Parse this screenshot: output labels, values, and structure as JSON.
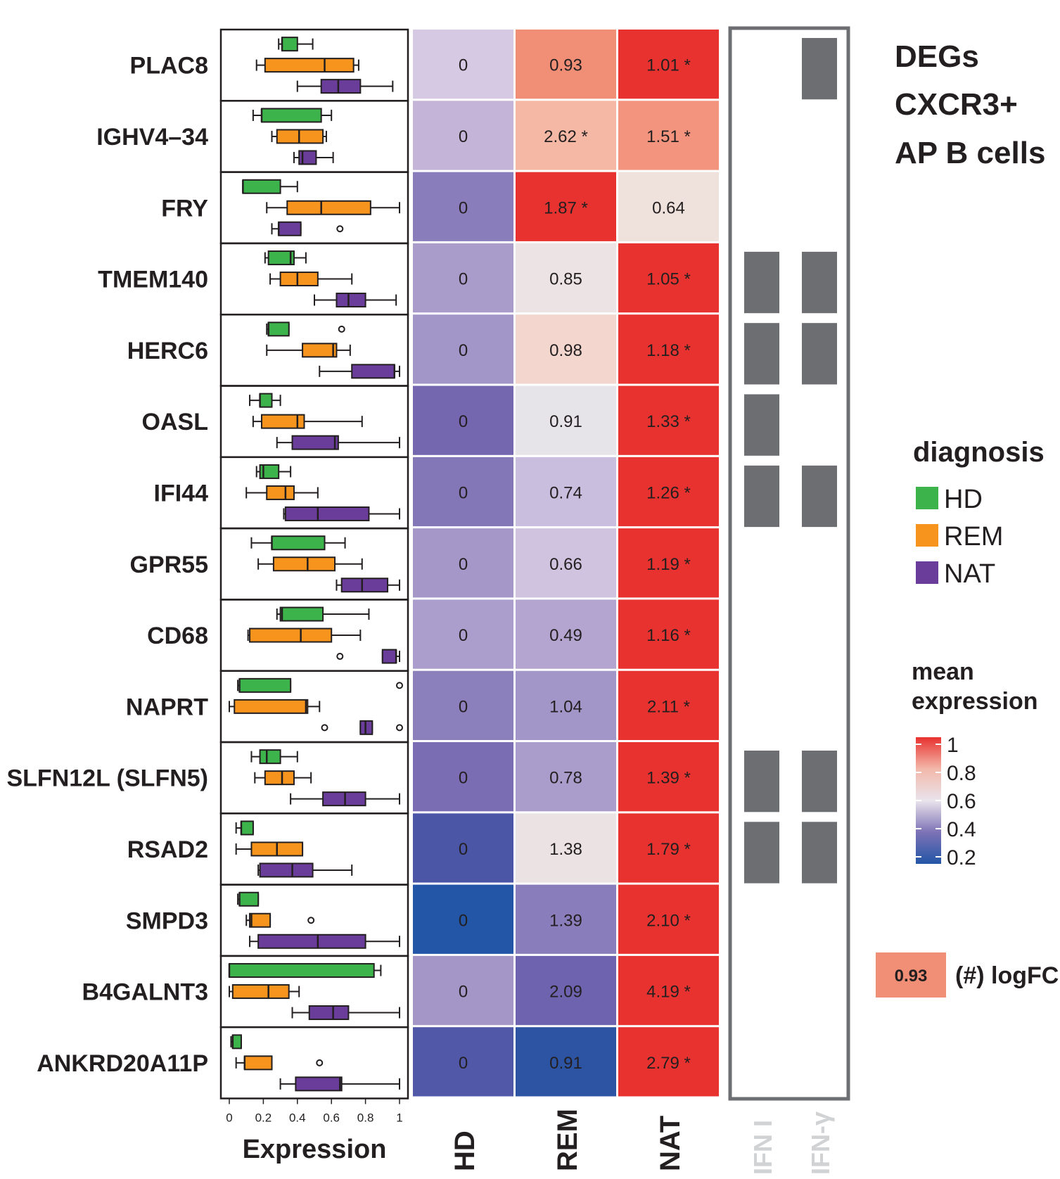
{
  "title_lines": [
    "DEGs",
    "CXCR3+",
    "AP B cells"
  ],
  "chart_data": {
    "type": "heatmap",
    "genes": [
      "PLAC8",
      "IGHV4–34",
      "FRY",
      "TMEM140",
      "HERC6",
      "OASL",
      "IFI44",
      "GPR55",
      "CD68",
      "NAPRT",
      "SLFN12L (SLFN5)",
      "RSAD2",
      "SMPD3",
      "B4GALNT3",
      "ANKRD20A11P"
    ],
    "boxplot": {
      "xlabel": "Expression",
      "ticks": [
        "0",
        "0.2",
        "0.4",
        "0.6",
        "0.8",
        "1"
      ],
      "xlim": [
        0,
        1
      ],
      "groups": [
        "HD",
        "REM",
        "NAT"
      ],
      "colors": {
        "HD": "#3cb44b",
        "REM": "#f7941d",
        "NAT": "#6a3d9a"
      },
      "rows": [
        {
          "HD": {
            "wmin": 0.29,
            "q1": 0.31,
            "med": 0.31,
            "q3": 0.4,
            "wmax": 0.49,
            "out": []
          },
          "REM": {
            "wmin": 0.16,
            "q1": 0.21,
            "med": 0.56,
            "q3": 0.73,
            "wmax": 0.76,
            "out": []
          },
          "NAT": {
            "wmin": 0.4,
            "q1": 0.54,
            "med": 0.64,
            "q3": 0.77,
            "wmax": 0.96,
            "out": []
          }
        },
        {
          "HD": {
            "wmin": 0.14,
            "q1": 0.19,
            "med": 0.19,
            "q3": 0.54,
            "wmax": 0.6,
            "out": []
          },
          "REM": {
            "wmin": 0.25,
            "q1": 0.28,
            "med": 0.41,
            "q3": 0.55,
            "wmax": 0.57,
            "out": []
          },
          "NAT": {
            "wmin": 0.38,
            "q1": 0.41,
            "med": 0.43,
            "q3": 0.51,
            "wmax": 0.61,
            "out": []
          }
        },
        {
          "HD": {
            "wmin": 0.08,
            "q1": 0.08,
            "med": 0.08,
            "q3": 0.3,
            "wmax": 0.4,
            "out": []
          },
          "REM": {
            "wmin": 0.22,
            "q1": 0.34,
            "med": 0.54,
            "q3": 0.83,
            "wmax": 1.0,
            "out": []
          },
          "NAT": {
            "wmin": 0.25,
            "q1": 0.29,
            "med": 0.29,
            "q3": 0.42,
            "wmax": 0.42,
            "out": [
              0.65
            ]
          }
        },
        {
          "HD": {
            "wmin": 0.21,
            "q1": 0.23,
            "med": 0.36,
            "q3": 0.38,
            "wmax": 0.45,
            "out": []
          },
          "REM": {
            "wmin": 0.24,
            "q1": 0.3,
            "med": 0.4,
            "q3": 0.52,
            "wmax": 0.72,
            "out": []
          },
          "NAT": {
            "wmin": 0.5,
            "q1": 0.63,
            "med": 0.7,
            "q3": 0.8,
            "wmax": 0.98,
            "out": []
          }
        },
        {
          "HD": {
            "wmin": 0.22,
            "q1": 0.23,
            "med": 0.23,
            "q3": 0.35,
            "wmax": 0.35,
            "out": [
              0.66
            ]
          },
          "REM": {
            "wmin": 0.22,
            "q1": 0.43,
            "med": 0.61,
            "q3": 0.63,
            "wmax": 0.71,
            "out": []
          },
          "NAT": {
            "wmin": 0.53,
            "q1": 0.72,
            "med": 0.97,
            "q3": 0.97,
            "wmax": 1.0,
            "out": []
          }
        },
        {
          "HD": {
            "wmin": 0.12,
            "q1": 0.18,
            "med": 0.18,
            "q3": 0.25,
            "wmax": 0.3,
            "out": []
          },
          "REM": {
            "wmin": 0.14,
            "q1": 0.19,
            "med": 0.4,
            "q3": 0.44,
            "wmax": 0.78,
            "out": []
          },
          "NAT": {
            "wmin": 0.28,
            "q1": 0.37,
            "med": 0.62,
            "q3": 0.64,
            "wmax": 1.0,
            "out": []
          }
        },
        {
          "HD": {
            "wmin": 0.16,
            "q1": 0.18,
            "med": 0.2,
            "q3": 0.29,
            "wmax": 0.36,
            "out": []
          },
          "REM": {
            "wmin": 0.1,
            "q1": 0.22,
            "med": 0.33,
            "q3": 0.38,
            "wmax": 0.52,
            "out": []
          },
          "NAT": {
            "wmin": 0.32,
            "q1": 0.33,
            "med": 0.52,
            "q3": 0.82,
            "wmax": 1.0,
            "out": []
          }
        },
        {
          "HD": {
            "wmin": 0.13,
            "q1": 0.25,
            "med": 0.25,
            "q3": 0.56,
            "wmax": 0.68,
            "out": []
          },
          "REM": {
            "wmin": 0.17,
            "q1": 0.26,
            "med": 0.46,
            "q3": 0.62,
            "wmax": 0.78,
            "out": []
          },
          "NAT": {
            "wmin": 0.63,
            "q1": 0.66,
            "med": 0.78,
            "q3": 0.93,
            "wmax": 1.0,
            "out": []
          }
        },
        {
          "HD": {
            "wmin": 0.28,
            "q1": 0.3,
            "med": 0.31,
            "q3": 0.55,
            "wmax": 0.82,
            "out": []
          },
          "REM": {
            "wmin": 0.11,
            "q1": 0.12,
            "med": 0.42,
            "q3": 0.6,
            "wmax": 0.77,
            "out": []
          },
          "NAT": {
            "wmin": 0.9,
            "q1": 0.9,
            "med": 0.98,
            "q3": 0.98,
            "wmax": 1.0,
            "out": [
              0.65
            ]
          }
        },
        {
          "HD": {
            "wmin": 0.05,
            "q1": 0.06,
            "med": 0.06,
            "q3": 0.36,
            "wmax": 0.36,
            "out": [
              1.0
            ]
          },
          "REM": {
            "wmin": 0.0,
            "q1": 0.03,
            "med": 0.45,
            "q3": 0.46,
            "wmax": 0.53,
            "out": []
          },
          "NAT": {
            "wmin": 0.77,
            "q1": 0.77,
            "med": 0.8,
            "q3": 0.84,
            "wmax": 0.84,
            "out": [
              0.56,
              1.0
            ]
          }
        },
        {
          "HD": {
            "wmin": 0.13,
            "q1": 0.18,
            "med": 0.22,
            "q3": 0.3,
            "wmax": 0.4,
            "out": []
          },
          "REM": {
            "wmin": 0.15,
            "q1": 0.21,
            "med": 0.31,
            "q3": 0.38,
            "wmax": 0.48,
            "out": []
          },
          "NAT": {
            "wmin": 0.36,
            "q1": 0.55,
            "med": 0.68,
            "q3": 0.8,
            "wmax": 1.0,
            "out": []
          }
        },
        {
          "HD": {
            "wmin": 0.04,
            "q1": 0.07,
            "med": 0.07,
            "q3": 0.14,
            "wmax": 0.14,
            "out": []
          },
          "REM": {
            "wmin": 0.04,
            "q1": 0.13,
            "med": 0.28,
            "q3": 0.43,
            "wmax": 0.43,
            "out": []
          },
          "NAT": {
            "wmin": 0.17,
            "q1": 0.18,
            "med": 0.37,
            "q3": 0.49,
            "wmax": 0.72,
            "out": []
          }
        },
        {
          "HD": {
            "wmin": 0.05,
            "q1": 0.06,
            "med": 0.06,
            "q3": 0.17,
            "wmax": 0.17,
            "out": []
          },
          "REM": {
            "wmin": 0.1,
            "q1": 0.12,
            "med": 0.13,
            "q3": 0.24,
            "wmax": 0.24,
            "out": [
              0.48
            ]
          },
          "NAT": {
            "wmin": 0.12,
            "q1": 0.17,
            "med": 0.52,
            "q3": 0.8,
            "wmax": 1.0,
            "out": []
          }
        },
        {
          "HD": {
            "wmin": 0.0,
            "q1": 0.0,
            "med": 0.0,
            "q3": 0.85,
            "wmax": 0.89,
            "out": []
          },
          "REM": {
            "wmin": 0.0,
            "q1": 0.02,
            "med": 0.23,
            "q3": 0.35,
            "wmax": 0.41,
            "out": []
          },
          "NAT": {
            "wmin": 0.37,
            "q1": 0.47,
            "med": 0.61,
            "q3": 0.7,
            "wmax": 1.0,
            "out": []
          }
        },
        {
          "HD": {
            "wmin": 0.01,
            "q1": 0.02,
            "med": 0.02,
            "q3": 0.07,
            "wmax": 0.07,
            "out": []
          },
          "REM": {
            "wmin": 0.04,
            "q1": 0.09,
            "med": 0.09,
            "q3": 0.25,
            "wmax": 0.25,
            "out": [
              0.53
            ]
          },
          "NAT": {
            "wmin": 0.3,
            "q1": 0.39,
            "med": 0.65,
            "q3": 0.66,
            "wmax": 1.0,
            "out": []
          }
        }
      ]
    },
    "heatmap": {
      "columns": [
        "HD",
        "REM",
        "NAT"
      ],
      "cells": [
        [
          {
            "text": "0",
            "color": "#d5c9e4"
          },
          {
            "text": "0.93",
            "color": "#f08e76"
          },
          {
            "text": "1.01 *",
            "color": "#e8322f"
          }
        ],
        [
          {
            "text": "0",
            "color": "#c4b4d8"
          },
          {
            "text": "2.62 *",
            "color": "#f5b8a5"
          },
          {
            "text": "1.51 *",
            "color": "#f2947e"
          }
        ],
        [
          {
            "text": "0",
            "color": "#8a7dbb"
          },
          {
            "text": "1.87 *",
            "color": "#e8322f"
          },
          {
            "text": "0.64",
            "color": "#efe1dc"
          }
        ],
        [
          {
            "text": "0",
            "color": "#a99ccb"
          },
          {
            "text": "0.85",
            "color": "#ece4e4"
          },
          {
            "text": "1.05 *",
            "color": "#e8322f"
          }
        ],
        [
          {
            "text": "0",
            "color": "#a295c7"
          },
          {
            "text": "0.98",
            "color": "#f3d6ce"
          },
          {
            "text": "1.18 *",
            "color": "#e8322f"
          }
        ],
        [
          {
            "text": "0",
            "color": "#7467b0"
          },
          {
            "text": "0.91",
            "color": "#e6e4e8"
          },
          {
            "text": "1.33 *",
            "color": "#e8322f"
          }
        ],
        [
          {
            "text": "0",
            "color": "#8477b8"
          },
          {
            "text": "0.74",
            "color": "#c9bedd"
          },
          {
            "text": "1.26 *",
            "color": "#e8322f"
          }
        ],
        [
          {
            "text": "0",
            "color": "#a597c8"
          },
          {
            "text": "0.66",
            "color": "#cfc3df"
          },
          {
            "text": "1.19 *",
            "color": "#e8322f"
          }
        ],
        [
          {
            "text": "0",
            "color": "#ab9ecc"
          },
          {
            "text": "0.49",
            "color": "#b3a5d0"
          },
          {
            "text": "1.16 *",
            "color": "#e8322f"
          }
        ],
        [
          {
            "text": "0",
            "color": "#8b7fbc"
          },
          {
            "text": "1.04",
            "color": "#a295c7"
          },
          {
            "text": "2.11 *",
            "color": "#e8322f"
          }
        ],
        [
          {
            "text": "0",
            "color": "#7a6db4"
          },
          {
            "text": "0.78",
            "color": "#aa9ccb"
          },
          {
            "text": "1.39 *",
            "color": "#e8322f"
          }
        ],
        [
          {
            "text": "0",
            "color": "#4b56a6"
          },
          {
            "text": "1.38",
            "color": "#ebe3e3"
          },
          {
            "text": "1.79 *",
            "color": "#e8322f"
          }
        ],
        [
          {
            "text": "0",
            "color": "#2356a6"
          },
          {
            "text": "1.39",
            "color": "#8a7dbb"
          },
          {
            "text": "2.10 *",
            "color": "#e8322f"
          }
        ],
        [
          {
            "text": "0",
            "color": "#a596c8"
          },
          {
            "text": "2.09",
            "color": "#6d63ae"
          },
          {
            "text": "4.19 *",
            "color": "#e8322f"
          }
        ],
        [
          {
            "text": "0",
            "color": "#5158a8"
          },
          {
            "text": "0.91",
            "color": "#2c54a3"
          },
          {
            "text": "2.79 *",
            "color": "#e8322f"
          }
        ]
      ]
    },
    "ifn": {
      "columns": [
        "IFN I",
        "IFN-γ"
      ],
      "ifn1": [
        0,
        0,
        0,
        1,
        1,
        1,
        1,
        0,
        0,
        0,
        1,
        1,
        0,
        0,
        0
      ],
      "ifng": [
        1,
        0,
        0,
        1,
        1,
        0,
        1,
        0,
        0,
        0,
        1,
        1,
        0,
        0,
        0
      ],
      "fill": "#6d6e71"
    },
    "legend": {
      "diagnosis_title": "diagnosis",
      "diagnosis_items": [
        {
          "label": "HD",
          "color": "#3cb44b"
        },
        {
          "label": "REM",
          "color": "#f7941d"
        },
        {
          "label": "NAT",
          "color": "#6a3d9a"
        }
      ],
      "mean_expression_title": [
        "mean",
        "expression"
      ],
      "colorbar_ticks": [
        "1",
        "0.8",
        "0.6",
        "0.4",
        "0.2"
      ],
      "colorbar_colors": [
        "#e8322f",
        "#f3b8aa",
        "#e9e4ec",
        "#7d72b6",
        "#2356a6"
      ],
      "logfc_example": "0.93",
      "logfc_example_color": "#f08e76",
      "logfc_label": "(#) logFC"
    }
  }
}
